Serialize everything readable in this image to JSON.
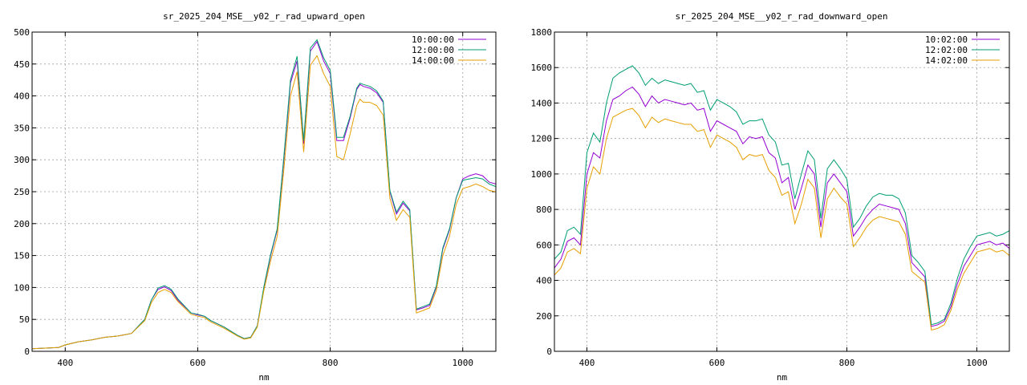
{
  "chart_data": [
    {
      "type": "line",
      "title": "sr_2025_204_MSE__y02_r_rad_upward_open",
      "xlabel": "nm",
      "ylabel": "",
      "xlim": [
        350,
        1050
      ],
      "ylim": [
        0,
        500
      ],
      "xticks": [
        400,
        600,
        800,
        1000
      ],
      "yticks": [
        0,
        50,
        100,
        150,
        200,
        250,
        300,
        350,
        400,
        450,
        500
      ],
      "grid": true,
      "legend_position": "top-right",
      "series": [
        {
          "name": "10:00:00",
          "color": "#9400d3",
          "x": [
            350,
            370,
            390,
            400,
            420,
            440,
            460,
            480,
            500,
            520,
            530,
            540,
            550,
            560,
            570,
            590,
            600,
            610,
            620,
            640,
            660,
            670,
            680,
            690,
            700,
            710,
            720,
            730,
            740,
            750,
            760,
            770,
            780,
            790,
            800,
            810,
            820,
            830,
            840,
            845,
            850,
            860,
            870,
            880,
            890,
            900,
            910,
            920,
            930,
            940,
            950,
            960,
            970,
            980,
            990,
            1000,
            1010,
            1020,
            1030,
            1040,
            1050
          ],
          "values": [
            4,
            5,
            6,
            10,
            15,
            18,
            22,
            24,
            28,
            50,
            80,
            97,
            101,
            95,
            80,
            60,
            57,
            55,
            48,
            38,
            25,
            20,
            22,
            40,
            100,
            150,
            190,
            300,
            420,
            455,
            325,
            470,
            485,
            455,
            435,
            330,
            330,
            365,
            410,
            418,
            415,
            412,
            405,
            390,
            250,
            215,
            232,
            220,
            65,
            68,
            72,
            100,
            160,
            190,
            240,
            270,
            275,
            278,
            275,
            265,
            262
          ]
        },
        {
          "name": "12:00:00",
          "color": "#009e73",
          "x": [
            350,
            370,
            390,
            400,
            420,
            440,
            460,
            480,
            500,
            520,
            530,
            540,
            550,
            560,
            570,
            590,
            600,
            610,
            620,
            640,
            660,
            670,
            680,
            690,
            700,
            710,
            720,
            730,
            740,
            750,
            760,
            770,
            780,
            790,
            800,
            810,
            820,
            830,
            840,
            845,
            850,
            860,
            870,
            880,
            890,
            900,
            910,
            920,
            930,
            940,
            950,
            960,
            970,
            980,
            990,
            1000,
            1010,
            1020,
            1030,
            1040,
            1050
          ],
          "values": [
            4,
            5,
            6,
            10,
            15,
            18,
            22,
            24,
            28,
            50,
            80,
            99,
            103,
            97,
            82,
            60,
            58,
            55,
            48,
            38,
            25,
            20,
            22,
            40,
            102,
            152,
            192,
            305,
            425,
            462,
            330,
            475,
            488,
            460,
            440,
            335,
            335,
            368,
            412,
            420,
            418,
            415,
            408,
            392,
            252,
            218,
            235,
            222,
            66,
            70,
            74,
            102,
            162,
            192,
            240,
            268,
            270,
            272,
            270,
            262,
            258
          ]
        },
        {
          "name": "14:00:00",
          "color": "#e69f00",
          "x": [
            350,
            370,
            390,
            400,
            420,
            440,
            460,
            480,
            500,
            520,
            530,
            540,
            550,
            560,
            570,
            590,
            600,
            610,
            620,
            640,
            660,
            670,
            680,
            690,
            700,
            710,
            720,
            730,
            740,
            750,
            760,
            770,
            780,
            790,
            800,
            810,
            820,
            830,
            840,
            845,
            850,
            860,
            870,
            880,
            890,
            900,
            910,
            920,
            930,
            940,
            950,
            960,
            970,
            980,
            990,
            1000,
            1010,
            1020,
            1030,
            1040,
            1050
          ],
          "values": [
            4,
            5,
            6,
            10,
            15,
            18,
            22,
            24,
            28,
            48,
            76,
            92,
            97,
            92,
            78,
            58,
            55,
            53,
            46,
            36,
            24,
            19,
            21,
            38,
            96,
            142,
            180,
            285,
            400,
            438,
            312,
            448,
            463,
            435,
            415,
            305,
            300,
            340,
            385,
            395,
            390,
            390,
            385,
            370,
            240,
            205,
            222,
            210,
            60,
            64,
            68,
            95,
            150,
            180,
            230,
            255,
            258,
            262,
            258,
            252,
            250
          ]
        }
      ]
    },
    {
      "type": "line",
      "title": "sr_2025_204_MSE__y02_r_rad_downward_open",
      "xlabel": "nm",
      "ylabel": "",
      "xlim": [
        350,
        1050
      ],
      "ylim": [
        0,
        1800
      ],
      "xticks": [
        400,
        600,
        800,
        1000
      ],
      "yticks": [
        0,
        200,
        400,
        600,
        800,
        1000,
        1200,
        1400,
        1600,
        1800
      ],
      "grid": true,
      "legend_position": "top-right",
      "series": [
        {
          "name": "10:02:00",
          "color": "#9400d3",
          "x": [
            350,
            360,
            370,
            380,
            390,
            400,
            410,
            420,
            430,
            440,
            450,
            460,
            470,
            480,
            490,
            500,
            510,
            520,
            530,
            540,
            550,
            560,
            570,
            580,
            590,
            600,
            610,
            620,
            630,
            640,
            650,
            660,
            670,
            680,
            690,
            700,
            710,
            720,
            730,
            740,
            750,
            760,
            770,
            780,
            790,
            800,
            810,
            820,
            830,
            840,
            850,
            860,
            870,
            880,
            890,
            900,
            910,
            920,
            930,
            940,
            950,
            960,
            970,
            980,
            990,
            1000,
            1010,
            1020,
            1030,
            1040,
            1050
          ],
          "values": [
            470,
            520,
            620,
            640,
            600,
            1000,
            1120,
            1090,
            1300,
            1420,
            1440,
            1470,
            1490,
            1450,
            1380,
            1440,
            1400,
            1420,
            1410,
            1400,
            1390,
            1400,
            1360,
            1370,
            1240,
            1300,
            1280,
            1260,
            1240,
            1170,
            1210,
            1200,
            1210,
            1120,
            1090,
            950,
            980,
            800,
            920,
            1050,
            1000,
            700,
            950,
            1000,
            950,
            900,
            650,
            700,
            760,
            800,
            830,
            820,
            810,
            800,
            720,
            500,
            460,
            420,
            140,
            150,
            170,
            250,
            380,
            480,
            540,
            600,
            610,
            620,
            600,
            610,
            580
          ]
        },
        {
          "name": "12:02:00",
          "color": "#009e73",
          "x": [
            350,
            360,
            370,
            380,
            390,
            400,
            410,
            420,
            430,
            440,
            450,
            460,
            470,
            480,
            490,
            500,
            510,
            520,
            530,
            540,
            550,
            560,
            570,
            580,
            590,
            600,
            610,
            620,
            630,
            640,
            650,
            660,
            670,
            680,
            690,
            700,
            710,
            720,
            730,
            740,
            750,
            760,
            770,
            780,
            790,
            800,
            810,
            820,
            830,
            840,
            850,
            860,
            870,
            880,
            890,
            900,
            910,
            920,
            930,
            940,
            950,
            960,
            970,
            980,
            990,
            1000,
            1010,
            1020,
            1030,
            1040,
            1050
          ],
          "values": [
            520,
            560,
            680,
            700,
            660,
            1120,
            1230,
            1180,
            1400,
            1540,
            1570,
            1590,
            1610,
            1570,
            1500,
            1540,
            1510,
            1530,
            1520,
            1510,
            1500,
            1510,
            1460,
            1470,
            1360,
            1420,
            1400,
            1380,
            1350,
            1280,
            1300,
            1300,
            1310,
            1220,
            1180,
            1050,
            1060,
            860,
            1000,
            1130,
            1080,
            750,
            1030,
            1080,
            1030,
            970,
            700,
            750,
            820,
            870,
            890,
            880,
            880,
            860,
            780,
            540,
            500,
            450,
            150,
            160,
            180,
            270,
            410,
            520,
            590,
            650,
            660,
            670,
            650,
            660,
            680
          ]
        },
        {
          "name": "14:02:00",
          "color": "#e69f00",
          "x": [
            350,
            360,
            370,
            380,
            390,
            400,
            410,
            420,
            430,
            440,
            450,
            460,
            470,
            480,
            490,
            500,
            510,
            520,
            530,
            540,
            550,
            560,
            570,
            580,
            590,
            600,
            610,
            620,
            630,
            640,
            650,
            660,
            670,
            680,
            690,
            700,
            710,
            720,
            730,
            740,
            750,
            760,
            770,
            780,
            790,
            800,
            810,
            820,
            830,
            840,
            850,
            860,
            870,
            880,
            890,
            900,
            910,
            920,
            930,
            940,
            950,
            960,
            970,
            980,
            990,
            1000,
            1010,
            1020,
            1030,
            1040,
            1050
          ],
          "values": [
            430,
            470,
            560,
            580,
            550,
            920,
            1040,
            1000,
            1200,
            1320,
            1340,
            1360,
            1370,
            1330,
            1260,
            1320,
            1290,
            1310,
            1300,
            1290,
            1280,
            1280,
            1240,
            1250,
            1150,
            1220,
            1200,
            1180,
            1150,
            1080,
            1110,
            1100,
            1110,
            1020,
            980,
            880,
            900,
            720,
            830,
            970,
            920,
            640,
            860,
            920,
            870,
            830,
            590,
            640,
            700,
            740,
            760,
            750,
            740,
            730,
            660,
            450,
            420,
            390,
            120,
            130,
            150,
            230,
            350,
            440,
            500,
            560,
            570,
            580,
            560,
            570,
            540
          ]
        }
      ]
    }
  ]
}
